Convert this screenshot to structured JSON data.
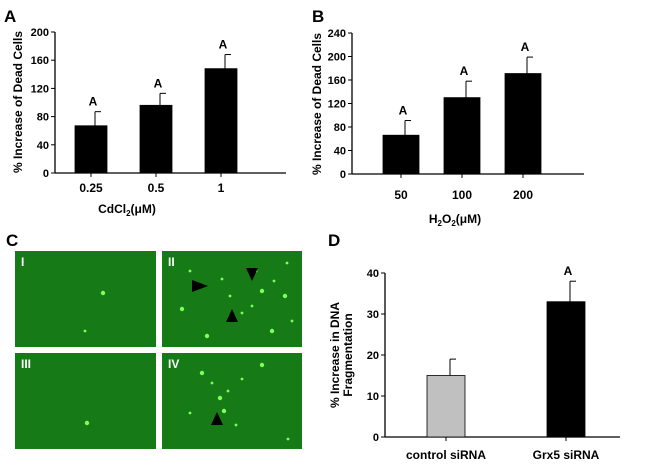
{
  "panels": {
    "A": "A",
    "B": "B",
    "C": "C",
    "D": "D"
  },
  "chart_data": [
    {
      "id": "A",
      "type": "bar",
      "categories": [
        "0.25",
        "0.5",
        "1"
      ],
      "values": [
        67,
        96,
        148
      ],
      "errors": [
        20,
        17,
        20
      ],
      "significance": [
        "A",
        "A",
        "A"
      ],
      "ylabel": "% Increase of Dead Cells",
      "xlabel_parts": [
        "CdCl",
        "2",
        "(μM)"
      ],
      "ylim": [
        0,
        200
      ],
      "yticks": [
        0,
        40,
        80,
        120,
        160,
        200
      ],
      "bar_colors": [
        "#000000",
        "#000000",
        "#000000"
      ]
    },
    {
      "id": "B",
      "type": "bar",
      "categories": [
        "50",
        "100",
        "200"
      ],
      "values": [
        66,
        130,
        171
      ],
      "errors": [
        25,
        28,
        28
      ],
      "significance": [
        "A",
        "A",
        "A"
      ],
      "ylabel": "% Increase of Dead Cells",
      "xlabel_parts": [
        "H",
        "2",
        "O",
        "2",
        "(μM)"
      ],
      "ylim": [
        0,
        240
      ],
      "yticks": [
        0,
        40,
        80,
        120,
        160,
        200,
        240
      ],
      "bar_colors": [
        "#000000",
        "#000000",
        "#000000"
      ]
    },
    {
      "id": "D",
      "type": "bar",
      "categories": [
        "control siRNA",
        "Grx5 siRNA"
      ],
      "values": [
        15,
        33
      ],
      "errors": [
        4,
        5
      ],
      "significance": [
        "",
        "A"
      ],
      "ylabel_lines": [
        "% Increase in DNA",
        "Fragmentation"
      ],
      "ylim": [
        0,
        40
      ],
      "yticks": [
        0,
        10,
        20,
        30,
        40
      ],
      "bar_colors": [
        "#c0c0c0",
        "#000000"
      ]
    }
  ],
  "micrographs": [
    {
      "label": "I",
      "cells": 2,
      "arrows": 0
    },
    {
      "label": "II",
      "cells": 14,
      "arrows": 3
    },
    {
      "label": "III",
      "cells": 1,
      "arrows": 0
    },
    {
      "label": "IV",
      "cells": 10,
      "arrows": 1
    }
  ],
  "colors": {
    "micrograph_bg": "#167a16",
    "cell": "#7dff5a"
  }
}
